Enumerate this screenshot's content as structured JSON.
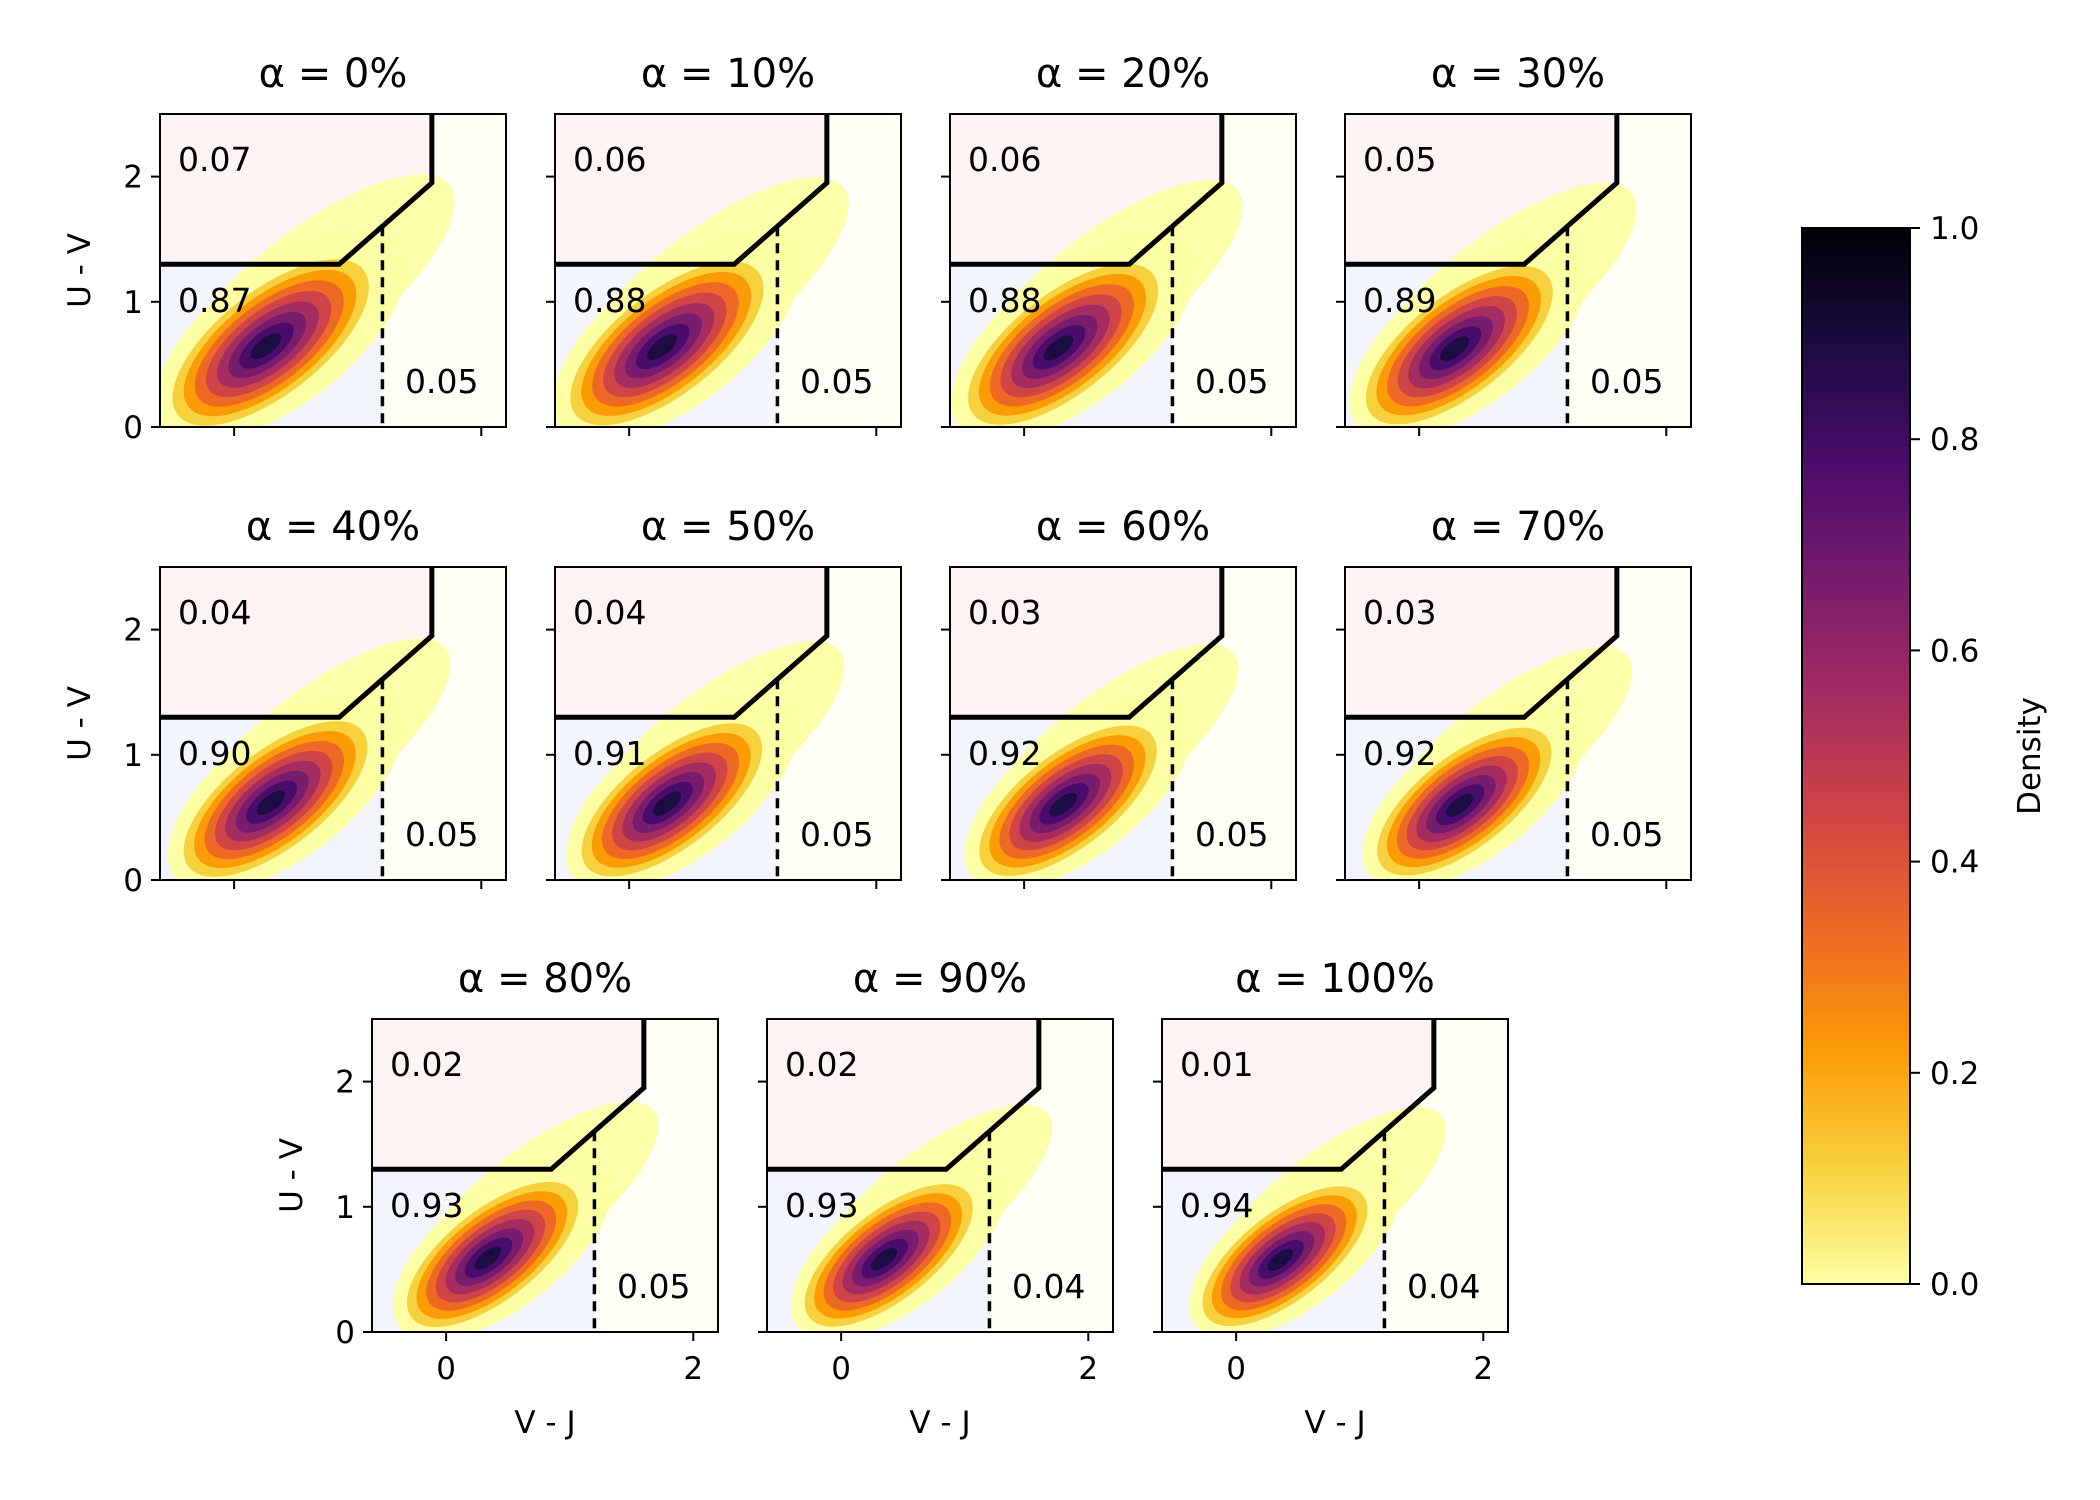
{
  "chart_data": {
    "type": "heatmap",
    "layout": "grid of 11 kernel-density contour panels (4, 4, 3) with shared colorbar on the right",
    "xlabel": "V - J",
    "ylabel": "U - V",
    "xlim": [
      -0.6,
      2.2
    ],
    "ylim": [
      0,
      2.5
    ],
    "xticks": [
      0,
      2
    ],
    "yticks": [
      0,
      1,
      2
    ],
    "quiescent_boundary": {
      "uv_floor": 1.3,
      "vj_break": 0.85,
      "vj_top": 1.6,
      "uv_top": 1.95
    },
    "dusty_boundary_vj": 1.2,
    "colormap": [
      "#fcffa4",
      "#f7d13d",
      "#fb9b06",
      "#ed6925",
      "#cf4446",
      "#a52c60",
      "#781c6d",
      "#4a0c6b",
      "#1b0c41",
      "#000004"
    ],
    "region_colors": {
      "quiescent": "#fdf3f3",
      "star_forming": "#f3f5fd",
      "dusty": "#fefef5"
    },
    "colorbar": {
      "label": "Density",
      "ticks": [
        "0.0",
        "0.2",
        "0.4",
        "0.6",
        "0.8",
        "1.0"
      ],
      "range": [
        0,
        1
      ]
    },
    "panels": [
      {
        "title": "α = 0%",
        "quiescent": "0.07",
        "star_forming": "0.87",
        "dusty": "0.05"
      },
      {
        "title": "α = 10%",
        "quiescent": "0.06",
        "star_forming": "0.88",
        "dusty": "0.05"
      },
      {
        "title": "α = 20%",
        "quiescent": "0.06",
        "star_forming": "0.88",
        "dusty": "0.05"
      },
      {
        "title": "α = 30%",
        "quiescent": "0.05",
        "star_forming": "0.89",
        "dusty": "0.05"
      },
      {
        "title": "α = 40%",
        "quiescent": "0.04",
        "star_forming": "0.90",
        "dusty": "0.05"
      },
      {
        "title": "α = 50%",
        "quiescent": "0.04",
        "star_forming": "0.91",
        "dusty": "0.05"
      },
      {
        "title": "α = 60%",
        "quiescent": "0.03",
        "star_forming": "0.92",
        "dusty": "0.05"
      },
      {
        "title": "α = 70%",
        "quiescent": "0.03",
        "star_forming": "0.92",
        "dusty": "0.05"
      },
      {
        "title": "α = 80%",
        "quiescent": "0.02",
        "star_forming": "0.93",
        "dusty": "0.05"
      },
      {
        "title": "α = 90%",
        "quiescent": "0.02",
        "star_forming": "0.93",
        "dusty": "0.04"
      },
      {
        "title": "α = 100%",
        "quiescent": "0.01",
        "star_forming": "0.94",
        "dusty": "0.04"
      }
    ]
  }
}
